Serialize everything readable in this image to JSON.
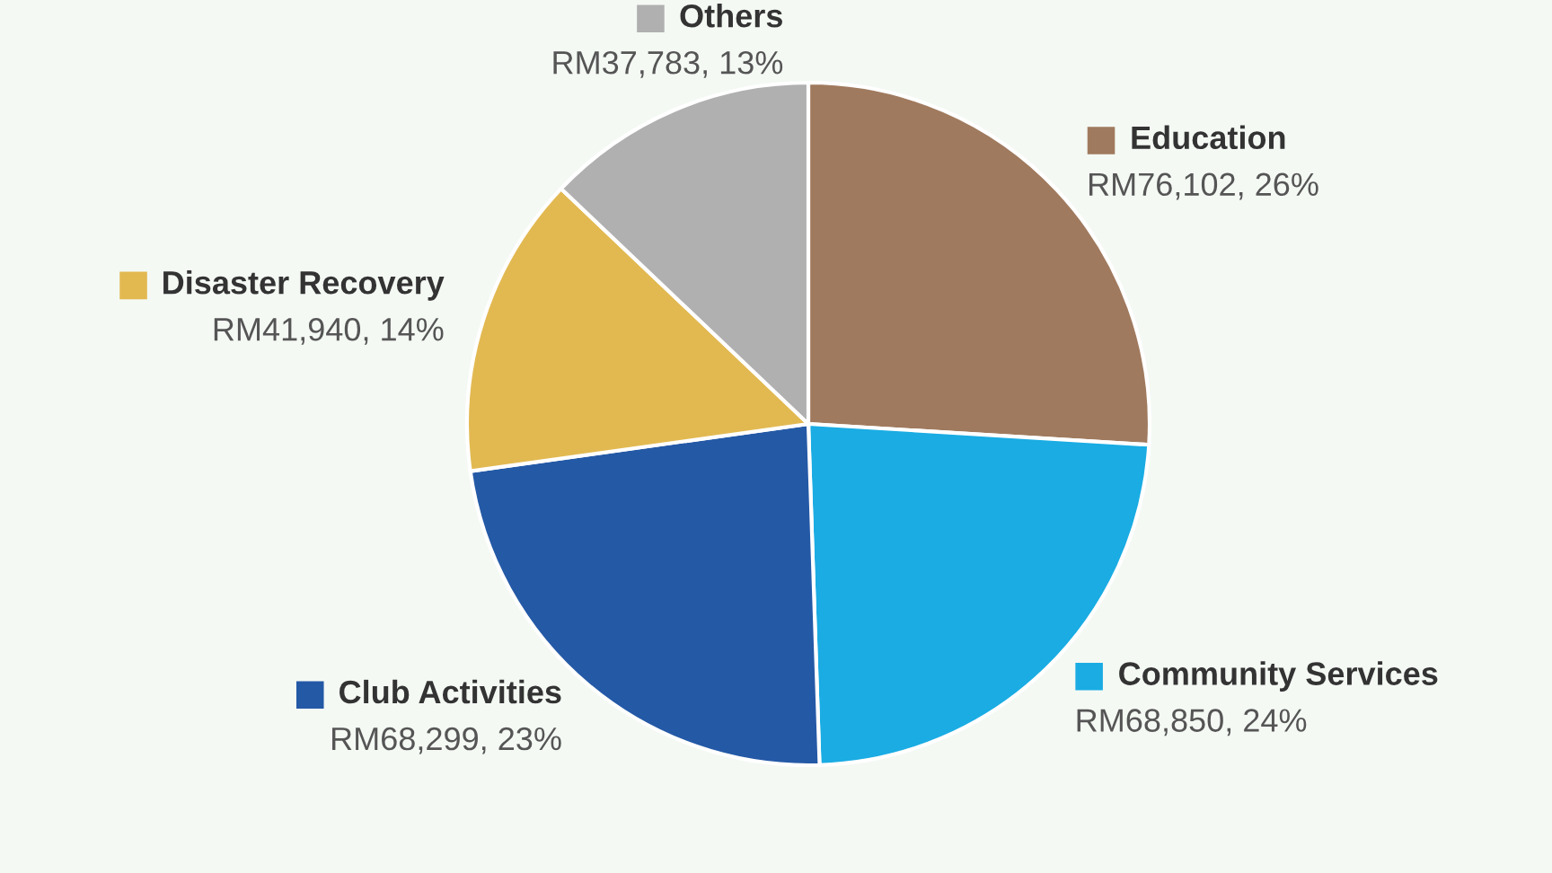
{
  "chart_data": {
    "type": "pie",
    "legend": "top",
    "categories": [
      "Education",
      "Community Services",
      "Club Activities",
      "Disaster Recovery",
      "Others"
    ],
    "values": [
      76102,
      68850,
      68299,
      41940,
      37783
    ],
    "colors": [
      "#a07a5e",
      "#1aace3",
      "#2459a6",
      "#e2b951",
      "#b0b0b0"
    ],
    "value_labels": [
      "RM76,102, 26%",
      "RM68,850, 24%",
      "RM68,299, 23%",
      "RM41,940, 14%",
      "RM37,783, 13%"
    ]
  }
}
